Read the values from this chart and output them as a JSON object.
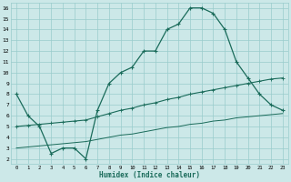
{
  "xlabel": "Humidex (Indice chaleur)",
  "bg_color": "#cce8e8",
  "grid_color": "#99cccc",
  "line_color": "#1a6b5a",
  "xlim": [
    -0.5,
    23.5
  ],
  "ylim": [
    1.5,
    16.5
  ],
  "xticks": [
    0,
    1,
    2,
    3,
    4,
    5,
    6,
    7,
    8,
    9,
    10,
    11,
    12,
    13,
    14,
    15,
    16,
    17,
    18,
    19,
    20,
    21,
    22,
    23
  ],
  "yticks": [
    2,
    3,
    4,
    5,
    6,
    7,
    8,
    9,
    10,
    11,
    12,
    13,
    14,
    15,
    16
  ],
  "line1_x": [
    0,
    1,
    2,
    3,
    4,
    5,
    6,
    7,
    8,
    9,
    10,
    11,
    12,
    13,
    14,
    15,
    16,
    17,
    18,
    19,
    20,
    21,
    22,
    23
  ],
  "line1_y": [
    8,
    6,
    5,
    2.5,
    3,
    3,
    2,
    6.5,
    9,
    10,
    10.5,
    12,
    12,
    14,
    14.5,
    16,
    16,
    15.5,
    14,
    11,
    9.5,
    8,
    7,
    6.5
  ],
  "line2_x": [
    0,
    1,
    2,
    3,
    4,
    5,
    6,
    7,
    8,
    9,
    10,
    11,
    12,
    13,
    14,
    15,
    16,
    17,
    18,
    19,
    20,
    21,
    22,
    23
  ],
  "line2_y": [
    5.0,
    5.1,
    5.2,
    5.3,
    5.4,
    5.5,
    5.6,
    5.9,
    6.2,
    6.5,
    6.7,
    7.0,
    7.2,
    7.5,
    7.7,
    8.0,
    8.2,
    8.4,
    8.6,
    8.8,
    9.0,
    9.2,
    9.4,
    9.5
  ],
  "line3_x": [
    0,
    1,
    2,
    3,
    4,
    5,
    6,
    7,
    8,
    9,
    10,
    11,
    12,
    13,
    14,
    15,
    16,
    17,
    18,
    19,
    20,
    21,
    22,
    23
  ],
  "line3_y": [
    3.0,
    3.1,
    3.2,
    3.3,
    3.4,
    3.5,
    3.6,
    3.8,
    4.0,
    4.2,
    4.3,
    4.5,
    4.7,
    4.9,
    5.0,
    5.2,
    5.3,
    5.5,
    5.6,
    5.8,
    5.9,
    6.0,
    6.1,
    6.2
  ]
}
